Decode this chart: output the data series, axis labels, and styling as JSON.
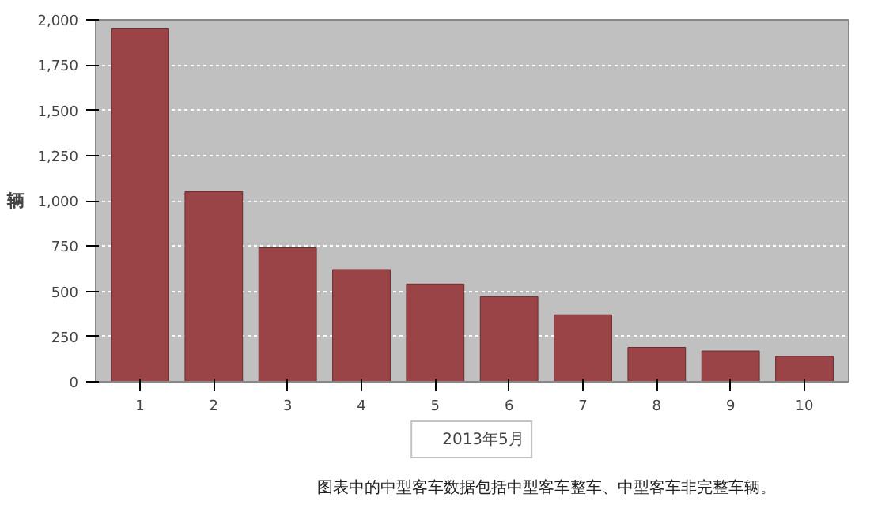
{
  "chart_data": {
    "type": "bar",
    "ylabel": "辆",
    "categories": [
      "1",
      "2",
      "3",
      "4",
      "5",
      "6",
      "7",
      "8",
      "9",
      "10"
    ],
    "series": [
      {
        "name": "2013年5月",
        "color": "#9a4447",
        "values": [
          1950,
          1050,
          740,
          620,
          540,
          470,
          370,
          190,
          170,
          140
        ]
      }
    ],
    "ylim": [
      0,
      2000
    ],
    "yticks": [
      {
        "value": 0,
        "label": "0"
      },
      {
        "value": 250,
        "label": "250"
      },
      {
        "value": 500,
        "label": "500"
      },
      {
        "value": 750,
        "label": "750"
      },
      {
        "value": 1000,
        "label": "1,000"
      },
      {
        "value": 1250,
        "label": "1,250"
      },
      {
        "value": 1500,
        "label": "1,500"
      },
      {
        "value": 1750,
        "label": "1,750"
      },
      {
        "value": 2000,
        "label": "2,000"
      }
    ],
    "grid": "y",
    "legend": "bottom",
    "annotations": [
      "图表中的中型客车数据包括中型客车整车、中型客车非完整车辆。"
    ]
  }
}
